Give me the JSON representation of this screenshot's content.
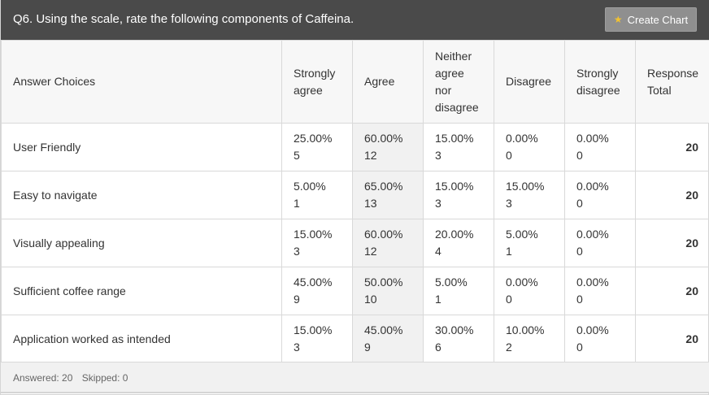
{
  "question": {
    "title": "Q6. Using the scale, rate the following components of Caffeina.",
    "create_chart_label": "Create Chart",
    "create_chart_icon": "star-icon"
  },
  "table": {
    "headers": [
      "Answer Choices",
      "Strongly agree",
      "Agree",
      "Neither agree nor disagree",
      "Disagree",
      "Strongly disagree",
      "Response Total"
    ],
    "rows": [
      {
        "label": "User Friendly",
        "cells": [
          {
            "pct": "25.00%",
            "count": "5"
          },
          {
            "pct": "60.00%",
            "count": "12"
          },
          {
            "pct": "15.00%",
            "count": "3"
          },
          {
            "pct": "0.00%",
            "count": "0"
          },
          {
            "pct": "0.00%",
            "count": "0"
          }
        ],
        "total": "20"
      },
      {
        "label": "Easy to navigate",
        "cells": [
          {
            "pct": "5.00%",
            "count": "1"
          },
          {
            "pct": "65.00%",
            "count": "13"
          },
          {
            "pct": "15.00%",
            "count": "3"
          },
          {
            "pct": "15.00%",
            "count": "3"
          },
          {
            "pct": "0.00%",
            "count": "0"
          }
        ],
        "total": "20"
      },
      {
        "label": "Visually appealing",
        "cells": [
          {
            "pct": "15.00%",
            "count": "3"
          },
          {
            "pct": "60.00%",
            "count": "12"
          },
          {
            "pct": "20.00%",
            "count": "4"
          },
          {
            "pct": "5.00%",
            "count": "1"
          },
          {
            "pct": "0.00%",
            "count": "0"
          }
        ],
        "total": "20"
      },
      {
        "label": "Sufficient coffee range",
        "cells": [
          {
            "pct": "45.00%",
            "count": "9"
          },
          {
            "pct": "50.00%",
            "count": "10"
          },
          {
            "pct": "5.00%",
            "count": "1"
          },
          {
            "pct": "0.00%",
            "count": "0"
          },
          {
            "pct": "0.00%",
            "count": "0"
          }
        ],
        "total": "20"
      },
      {
        "label": "Application worked as intended",
        "cells": [
          {
            "pct": "15.00%",
            "count": "3"
          },
          {
            "pct": "45.00%",
            "count": "9"
          },
          {
            "pct": "30.00%",
            "count": "6"
          },
          {
            "pct": "10.00%",
            "count": "2"
          },
          {
            "pct": "0.00%",
            "count": "0"
          }
        ],
        "total": "20"
      }
    ]
  },
  "footer": {
    "answered": "Answered: 20",
    "skipped": "Skipped: 0"
  },
  "colors": {
    "header_bg": "#4a4a4a",
    "button_bg": "#8f8f8f",
    "star": "#f2c230",
    "highlight_col": "#f1f1f1"
  }
}
